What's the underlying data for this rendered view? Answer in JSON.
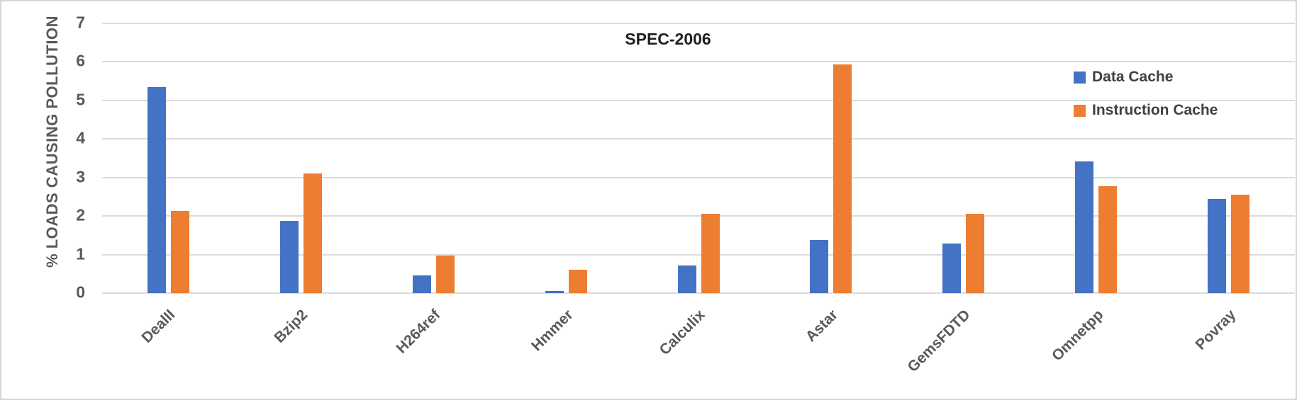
{
  "chart_data": {
    "type": "bar",
    "title": "SPEC-2006",
    "xlabel": "",
    "ylabel": "% LOADS CAUSING POLLUTION",
    "ylim": [
      0,
      7
    ],
    "ytick_step": 1,
    "yticks": [
      0,
      1,
      2,
      3,
      4,
      5,
      6,
      7
    ],
    "grid": true,
    "legend_position": "top-right",
    "categories": [
      "DealII",
      "Bzip2",
      "H264ref",
      "Hmmer",
      "Calculix",
      "Astar",
      "GemsFDTD",
      "Omnetpp",
      "Povray"
    ],
    "series": [
      {
        "name": "Data Cache",
        "color": "#4472C4",
        "values": [
          5.35,
          1.87,
          0.45,
          0.06,
          0.72,
          1.37,
          1.28,
          3.42,
          2.45
        ]
      },
      {
        "name": "Instruction Cache",
        "color": "#ED7D31",
        "values": [
          2.13,
          3.1,
          0.97,
          0.6,
          2.06,
          5.93,
          2.05,
          2.78,
          2.55
        ]
      }
    ]
  },
  "colors": {
    "gridline": "#DCDCDC",
    "axis_text": "#595959",
    "title_text": "#1F1F1F",
    "legend_text": "#404040",
    "frame": "#D6D6D6",
    "background": "#FFFFFF"
  }
}
